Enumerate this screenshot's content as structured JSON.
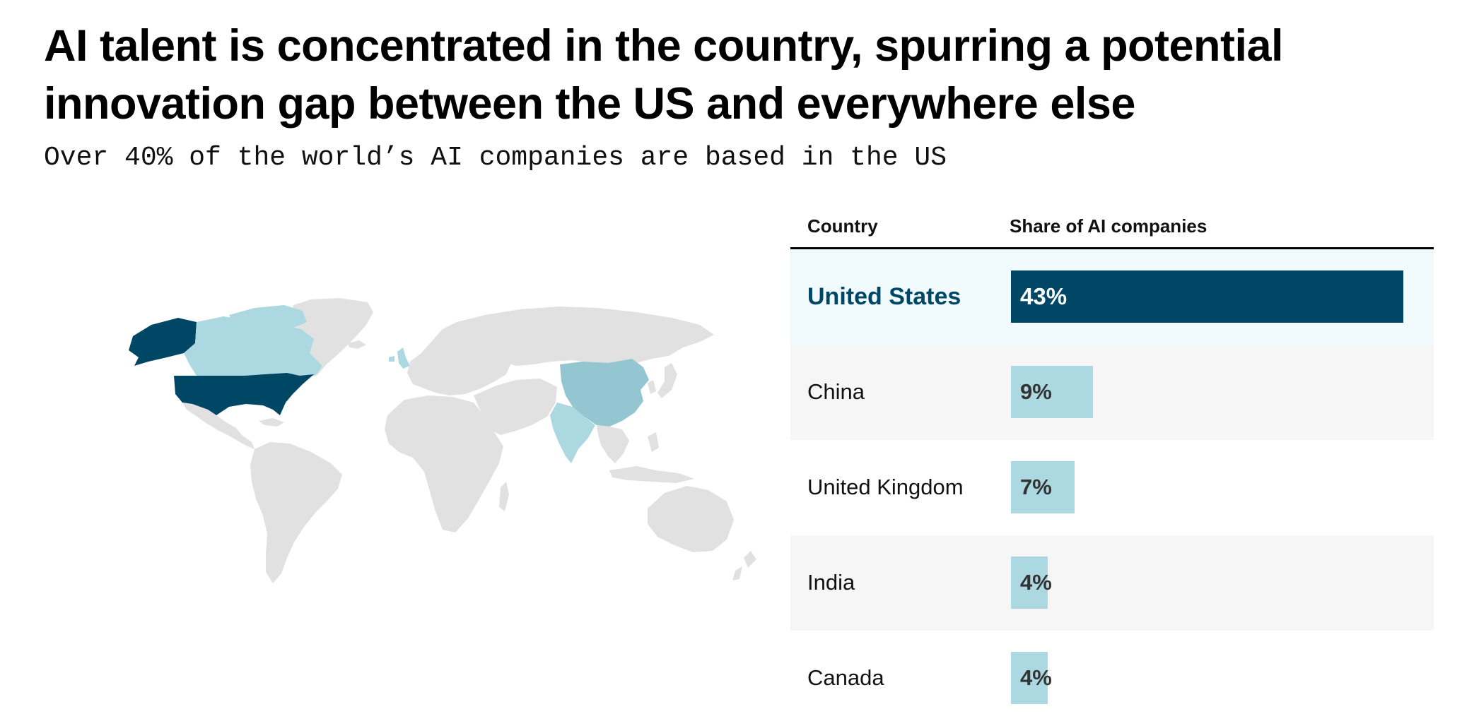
{
  "header": {
    "title": "AI talent is concentrated in the country, spurring a potential innovation gap between the US and everywhere else",
    "subtitle": "Over 40% of the world’s AI companies are based in the US"
  },
  "colors": {
    "us": "#004766",
    "china": "#94c6d1",
    "other_highlight": "#acd8e1",
    "other_land": "#e1e1e1",
    "row_highlight": "#f1fbfd",
    "row_shade": "#f6f6f6"
  },
  "chart_data": {
    "type": "table",
    "columns": [
      "Country",
      "Share of AI companies"
    ],
    "rows": [
      {
        "country": "United States",
        "value": 43,
        "label": "43%"
      },
      {
        "country": "China",
        "value": 9,
        "label": "9%"
      },
      {
        "country": "United Kingdom",
        "value": 7,
        "label": "7%"
      },
      {
        "country": "India",
        "value": 4,
        "label": "4%"
      },
      {
        "country": "Canada",
        "value": 4,
        "label": "4%"
      }
    ],
    "max_value": 43
  }
}
